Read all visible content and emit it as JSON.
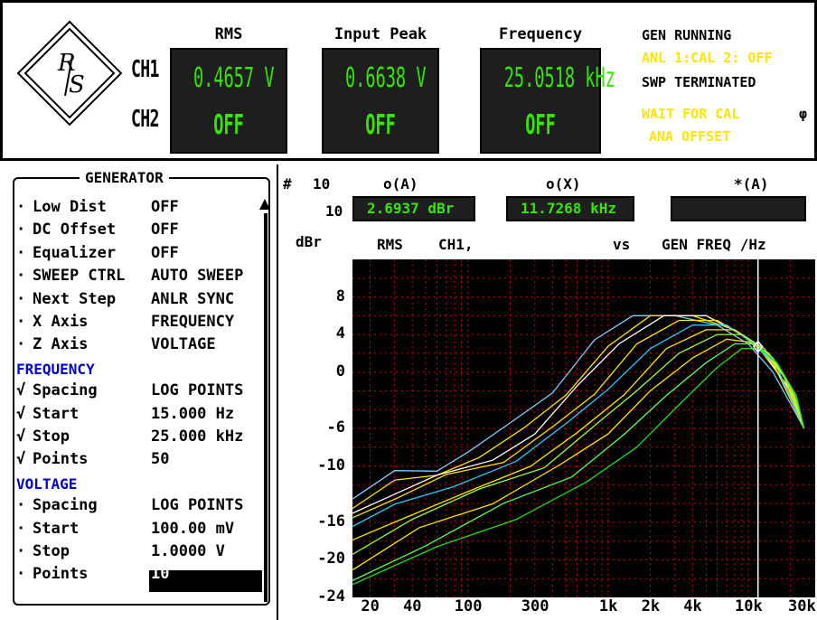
{
  "header": {
    "ch1_label": "CH1",
    "ch2_label": "CH2",
    "meters": [
      {
        "title": "RMS",
        "ch1": "0.4657  V",
        "ch2": "OFF"
      },
      {
        "title": "Input Peak",
        "ch1": "0.6638  V",
        "ch2": "OFF"
      },
      {
        "title": "Frequency",
        "ch1": "25.0518 kHz",
        "ch2": "OFF"
      }
    ],
    "status": {
      "line1": "GEN RUNNING",
      "line2": "ANL 1:CAL  2: OFF",
      "line3": "SWP TERMINATED",
      "line4": "WAIT FOR CAL",
      "line5": "ANA OFFSET",
      "extra": "φ"
    }
  },
  "generator": {
    "title": "GENERATOR",
    "rows_top": [
      {
        "bullet": "·",
        "name": "Low Dist",
        "value": "OFF"
      },
      {
        "bullet": "·",
        "name": "DC Offset",
        "value": "OFF"
      },
      {
        "bullet": "·",
        "name": "Equalizer",
        "value": "OFF"
      },
      {
        "bullet": "·",
        "name": "SWEEP CTRL",
        "value": "AUTO SWEEP"
      },
      {
        "bullet": "·",
        "name": "Next Step",
        "value": "ANLR SYNC"
      },
      {
        "bullet": "·",
        "name": "X Axis",
        "value": "FREQUENCY"
      },
      {
        "bullet": "·",
        "name": "Z Axis",
        "value": "VOLTAGE"
      }
    ],
    "frequency_header": "FREQUENCY",
    "rows_freq": [
      {
        "bullet": "√",
        "name": "Spacing",
        "value": "LOG POINTS"
      },
      {
        "bullet": "√",
        "name": "Start",
        "value": "15.000 Hz"
      },
      {
        "bullet": "√",
        "name": "Stop",
        "value": "25.000 kHz"
      },
      {
        "bullet": "√",
        "name": "Points",
        "value": "50"
      }
    ],
    "voltage_header": "VOLTAGE",
    "rows_volt": [
      {
        "bullet": "·",
        "name": "Spacing",
        "value": "LOG POINTS"
      },
      {
        "bullet": "·",
        "name": "Start",
        "value": "100.00 mV"
      },
      {
        "bullet": "·",
        "name": "Stop",
        "value": "1.0000 V"
      },
      {
        "bullet": "·",
        "name": "Points",
        "value": "10"
      }
    ]
  },
  "analysis": {
    "hash": "#",
    "count_top": "10",
    "count_row": "10",
    "col_o_a": "o(A)",
    "col_o_x": "o(X)",
    "col_star_a": "*(A)",
    "val_o_a": "2.6937 dBr",
    "val_o_x": "11.7268 kHz",
    "val_star_a": "",
    "unit": "dBr",
    "trace_desc1": "RMS",
    "trace_desc2": "CH1,",
    "vs": "vs",
    "x_desc": "GEN FREQ /Hz"
  },
  "colors": {
    "meter_bg": "#1e1e1e",
    "meter_text": "#36e600",
    "status_yellow": "#ffe600",
    "header_blue": "#0000cc",
    "plot_bg": "#000000",
    "grid": "#c80000",
    "cursor": "#ffffff"
  },
  "chart_data": {
    "type": "line",
    "x_scale": "log",
    "xlim": [
      15,
      30000
    ],
    "ylim": [
      -24,
      12
    ],
    "yticks": [
      8,
      4,
      0,
      -6,
      -10,
      -16,
      -20,
      -24
    ],
    "xticks": [
      {
        "label": "20",
        "value": 20
      },
      {
        "label": "40",
        "value": 40
      },
      {
        "label": "100",
        "value": 100
      },
      {
        "label": "300",
        "value": 300
      },
      {
        "label": "1k",
        "value": 1000
      },
      {
        "label": "2k",
        "value": 2000
      },
      {
        "label": "4k",
        "value": 4000
      },
      {
        "label": "10k",
        "value": 10000
      },
      {
        "label": "30k",
        "value": 30000
      }
    ],
    "grid": true,
    "cursor_x": 11727,
    "series": [
      {
        "color": "#7fd0ff",
        "values": [
          [
            15,
            -13
          ],
          [
            30,
            -11
          ],
          [
            60,
            -10
          ],
          [
            100,
            -9
          ],
          [
            200,
            -6
          ],
          [
            400,
            -2
          ],
          [
            800,
            3
          ],
          [
            1500,
            6
          ],
          [
            3000,
            6
          ],
          [
            6000,
            5
          ],
          [
            10000,
            3
          ],
          [
            15000,
            0
          ],
          [
            25000,
            -6
          ]
        ]
      },
      {
        "color": "#ffe600",
        "values": [
          [
            15,
            -14
          ],
          [
            30,
            -11.5
          ],
          [
            60,
            -10.5
          ],
          [
            120,
            -9
          ],
          [
            250,
            -6
          ],
          [
            500,
            -2
          ],
          [
            1000,
            3
          ],
          [
            2000,
            6
          ],
          [
            4000,
            6
          ],
          [
            8000,
            4.5
          ],
          [
            12000,
            2.5
          ],
          [
            18000,
            -1
          ],
          [
            25000,
            -6
          ]
        ]
      },
      {
        "color": "#ffffff",
        "values": [
          [
            15,
            -15
          ],
          [
            30,
            -12.5
          ],
          [
            60,
            -11
          ],
          [
            150,
            -9.5
          ],
          [
            300,
            -6
          ],
          [
            600,
            -2
          ],
          [
            1200,
            3
          ],
          [
            2500,
            6
          ],
          [
            5000,
            6
          ],
          [
            9000,
            4
          ],
          [
            13000,
            2
          ],
          [
            20000,
            -2
          ],
          [
            25000,
            -6
          ]
        ]
      },
      {
        "color": "#ffe600",
        "values": [
          [
            15,
            -16
          ],
          [
            30,
            -13
          ],
          [
            70,
            -11.5
          ],
          [
            180,
            -9.5
          ],
          [
            400,
            -6
          ],
          [
            800,
            -2
          ],
          [
            1600,
            3
          ],
          [
            3200,
            5.5
          ],
          [
            6000,
            5.5
          ],
          [
            10000,
            3.5
          ],
          [
            15000,
            1
          ],
          [
            25000,
            -6
          ]
        ]
      },
      {
        "color": "#2ec8ff",
        "values": [
          [
            15,
            -17
          ],
          [
            30,
            -14
          ],
          [
            80,
            -12
          ],
          [
            220,
            -10
          ],
          [
            500,
            -6
          ],
          [
            1000,
            -2
          ],
          [
            2000,
            2.5
          ],
          [
            4000,
            5
          ],
          [
            7000,
            5
          ],
          [
            11000,
            3
          ],
          [
            16000,
            0.5
          ],
          [
            25000,
            -6
          ]
        ]
      },
      {
        "color": "#ffe600",
        "values": [
          [
            15,
            -18
          ],
          [
            35,
            -15
          ],
          [
            100,
            -12.5
          ],
          [
            280,
            -10
          ],
          [
            600,
            -6
          ],
          [
            1300,
            -2
          ],
          [
            2600,
            2.5
          ],
          [
            5000,
            4.5
          ],
          [
            8000,
            4.5
          ],
          [
            12000,
            2.8
          ],
          [
            18000,
            -0.5
          ],
          [
            25000,
            -6
          ]
        ]
      },
      {
        "color": "#9cff40",
        "values": [
          [
            15,
            -19
          ],
          [
            40,
            -16
          ],
          [
            120,
            -13
          ],
          [
            350,
            -10
          ],
          [
            800,
            -6
          ],
          [
            1600,
            -2
          ],
          [
            3200,
            2
          ],
          [
            6000,
            4
          ],
          [
            9000,
            4
          ],
          [
            13000,
            2.5
          ],
          [
            19000,
            -1
          ],
          [
            25000,
            -6
          ]
        ]
      },
      {
        "color": "#ffe600",
        "values": [
          [
            15,
            -20.5
          ],
          [
            45,
            -17
          ],
          [
            150,
            -13.5
          ],
          [
            450,
            -10.5
          ],
          [
            1000,
            -6.5
          ],
          [
            2000,
            -2
          ],
          [
            4000,
            1.5
          ],
          [
            7000,
            3.5
          ],
          [
            10000,
            3.2
          ],
          [
            14000,
            2
          ],
          [
            20000,
            -1.5
          ],
          [
            25000,
            -6
          ]
        ]
      },
      {
        "color": "#60ff60",
        "values": [
          [
            15,
            -22
          ],
          [
            50,
            -18
          ],
          [
            180,
            -14.5
          ],
          [
            550,
            -11
          ],
          [
            1300,
            -7
          ],
          [
            2600,
            -2.5
          ],
          [
            5000,
            1
          ],
          [
            8000,
            3
          ],
          [
            11000,
            3
          ],
          [
            15000,
            1.5
          ],
          [
            21000,
            -2
          ],
          [
            25000,
            -6
          ]
        ]
      },
      {
        "color": "#20e020",
        "values": [
          [
            15,
            -23
          ],
          [
            60,
            -19
          ],
          [
            220,
            -15.5
          ],
          [
            700,
            -12
          ],
          [
            1600,
            -8
          ],
          [
            3200,
            -3.5
          ],
          [
            6000,
            0.5
          ],
          [
            9000,
            2.5
          ],
          [
            12000,
            2.5
          ],
          [
            16000,
            1
          ],
          [
            22000,
            -2.5
          ],
          [
            25000,
            -6
          ]
        ]
      }
    ]
  }
}
